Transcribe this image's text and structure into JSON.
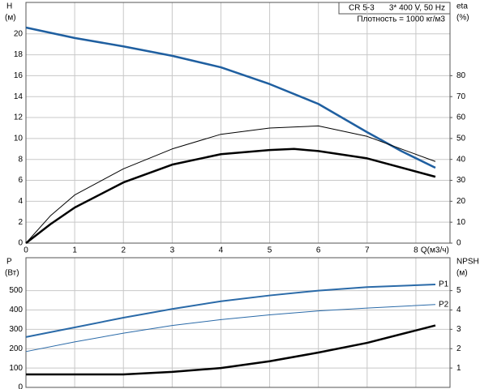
{
  "chart_data": [
    {
      "type": "line",
      "annotations": [
        "CR 5-3",
        "3* 400 V, 50 Hz",
        "Плотность = 1000 кг/м3"
      ],
      "ylabel": "H",
      "ylabel_unit": "(м)",
      "y2label": "eta",
      "y2label_unit": "(%)",
      "xlabel": "Q(м3/ч)",
      "xlim": [
        0,
        8.7
      ],
      "xticks": [
        0,
        1,
        2,
        3,
        4,
        5,
        6,
        7,
        8
      ],
      "ylim": [
        0,
        23
      ],
      "yticks": [
        0,
        2,
        4,
        6,
        8,
        10,
        12,
        14,
        16,
        18,
        20
      ],
      "y2lim": [
        0,
        115
      ],
      "y2ticks": [
        0,
        10,
        20,
        30,
        40,
        50,
        60,
        70,
        80
      ],
      "grid": true,
      "series": [
        {
          "color": "#1f5fa0",
          "width": 2.5,
          "x": [
            0,
            1,
            2,
            3,
            4,
            5,
            6,
            7,
            7.7,
            8.4
          ],
          "values": [
            20.6,
            19.6,
            18.8,
            17.9,
            16.8,
            15.2,
            13.3,
            10.6,
            8.8,
            7.2
          ]
        },
        {
          "color": "#000000",
          "width": 1,
          "axis": "y2",
          "x": [
            0,
            0.5,
            1,
            2,
            3,
            4,
            5,
            6,
            7,
            8.4
          ],
          "values": [
            0,
            13,
            23,
            35.5,
            45,
            52,
            55,
            56,
            51,
            39
          ]
        },
        {
          "color": "#000000",
          "width": 2.5,
          "axis": "y2",
          "x": [
            0,
            0.5,
            1,
            2,
            3,
            4,
            5,
            5.5,
            6,
            7,
            8.4
          ],
          "values": [
            0,
            9,
            17,
            29,
            37.5,
            42.5,
            44.5,
            45,
            44,
            40.5,
            31.7
          ]
        }
      ]
    },
    {
      "type": "line",
      "ylabel": "P",
      "ylabel_unit": "(Вт)",
      "y2label": "NPSH",
      "y2label_unit": "(м)",
      "xlim": [
        0,
        8.7
      ],
      "xticks": [
        0,
        1,
        2,
        3,
        4,
        5,
        6,
        7,
        8
      ],
      "ylim": [
        0,
        670
      ],
      "yticks": [
        0,
        100,
        200,
        300,
        400,
        500
      ],
      "y2lim": [
        0,
        6.7
      ],
      "y2ticks": [
        1,
        2,
        3,
        4,
        5
      ],
      "grid": true,
      "series": [
        {
          "name": "P1",
          "color": "#2a6aa8",
          "width": 2,
          "x": [
            0,
            1,
            2,
            3,
            4,
            5,
            6,
            7,
            8.4
          ],
          "values": [
            260,
            310,
            360,
            405,
            445,
            475,
            500,
            518,
            532
          ]
        },
        {
          "name": "P2",
          "color": "#2a6aa8",
          "width": 1,
          "x": [
            0,
            1,
            2,
            3,
            4,
            5,
            6,
            7,
            8.4
          ],
          "values": [
            185,
            235,
            280,
            320,
            350,
            375,
            395,
            410,
            428
          ]
        },
        {
          "color": "#000000",
          "width": 2.5,
          "axis": "y2",
          "x": [
            0,
            1,
            2,
            3,
            4,
            5,
            6,
            7,
            8.4
          ],
          "values": [
            0.67,
            0.67,
            0.67,
            0.8,
            1.0,
            1.35,
            1.8,
            2.3,
            3.2
          ]
        }
      ]
    }
  ]
}
